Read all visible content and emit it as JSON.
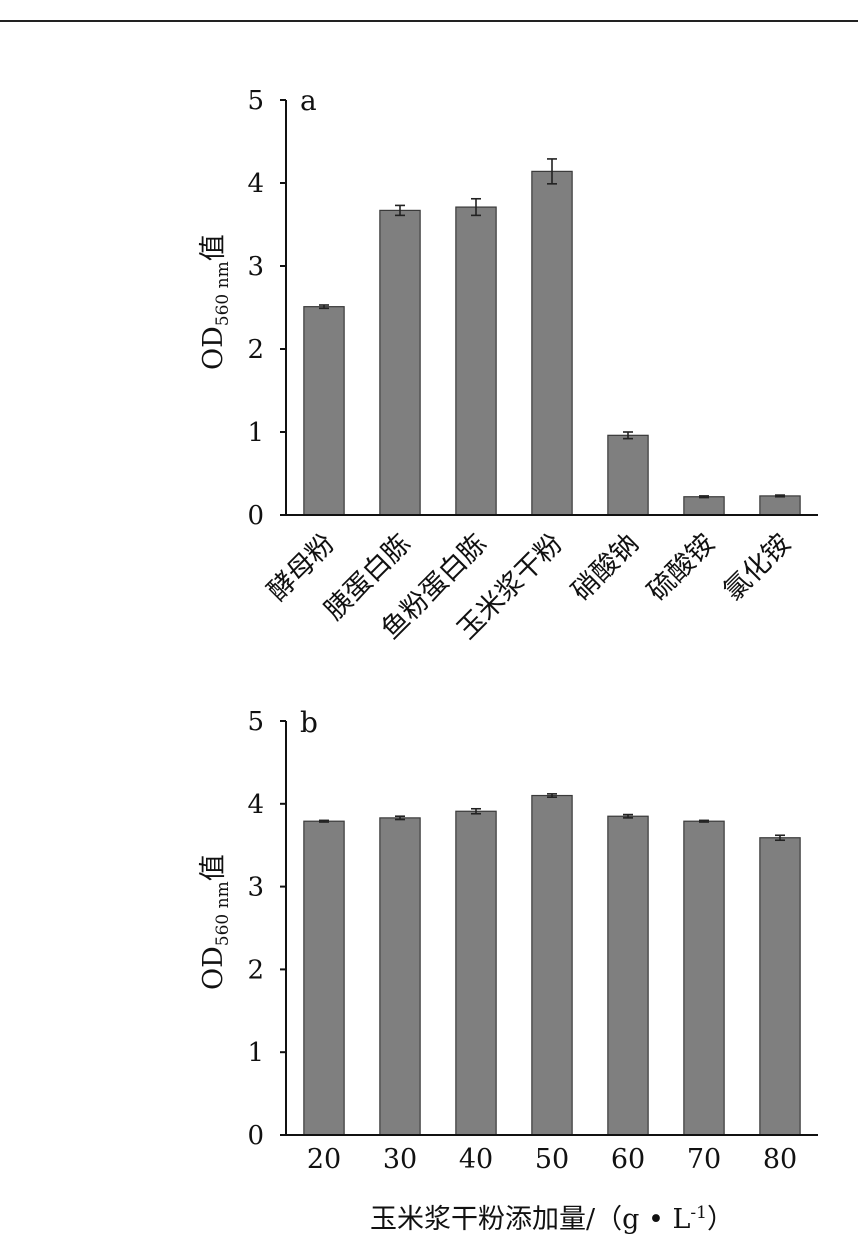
{
  "colors": {
    "bar_fill": "#7f7f7f",
    "bar_stroke": "#3a3a3a",
    "axis": "#111111"
  },
  "chart_data": [
    {
      "type": "bar",
      "panel_label": "a",
      "ylabel": {
        "main": "OD",
        "sub": "560 nm",
        "suffix": "值"
      },
      "xlabel": "",
      "ylim": [
        0,
        5
      ],
      "yticks": [
        "0",
        "1",
        "2",
        "3",
        "4",
        "5"
      ],
      "categories": [
        "酵母粉",
        "胰蛋白胨",
        "鱼粉蛋白胨",
        "玉米浆干粉",
        "硝酸钠",
        "硫酸铵",
        "氯化铵"
      ],
      "values": [
        2.51,
        3.67,
        3.71,
        4.14,
        0.96,
        0.22,
        0.23
      ],
      "errors": [
        0.02,
        0.06,
        0.1,
        0.15,
        0.04,
        0.01,
        0.01
      ],
      "category_label_rotation": -45
    },
    {
      "type": "bar",
      "panel_label": "b",
      "ylabel": {
        "main": "OD",
        "sub": "560 nm",
        "suffix": "值"
      },
      "xlabel": {
        "main": "玉米浆干粉添加量/（g • L",
        "sup": "-1",
        "close": "）"
      },
      "ylim": [
        0,
        5
      ],
      "yticks": [
        "0",
        "1",
        "2",
        "3",
        "4",
        "5"
      ],
      "categories": [
        "20",
        "30",
        "40",
        "50",
        "60",
        "70",
        "80"
      ],
      "values": [
        3.79,
        3.83,
        3.91,
        4.1,
        3.85,
        3.79,
        3.59
      ],
      "errors": [
        0.01,
        0.02,
        0.03,
        0.02,
        0.02,
        0.01,
        0.03
      ],
      "category_label_rotation": 0
    }
  ]
}
